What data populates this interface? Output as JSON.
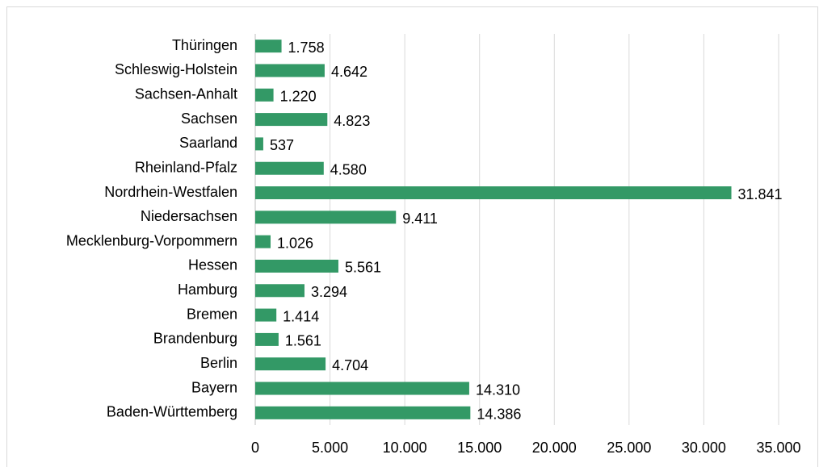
{
  "chart_data": {
    "type": "barh",
    "categories": [
      "Thüringen",
      "Schleswig-Holstein",
      "Sachsen-Anhalt",
      "Sachsen",
      "Saarland",
      "Rheinland-Pfalz",
      "Nordrhein-Westfalen",
      "Niedersachsen",
      "Mecklenburg-Vorpommern",
      "Hessen",
      "Hamburg",
      "Bremen",
      "Brandenburg",
      "Berlin",
      "Bayern",
      "Baden-Württemberg"
    ],
    "values": [
      1758,
      4642,
      1220,
      4823,
      537,
      4580,
      31841,
      9411,
      1026,
      5561,
      3294,
      1414,
      1561,
      4704,
      14310,
      14386
    ],
    "value_labels": [
      "1.758",
      "4.642",
      "1.220",
      "4.823",
      "537",
      "4.580",
      "31.841",
      "9.411",
      "1.026",
      "5.561",
      "3.294",
      "1.414",
      "1.561",
      "4.704",
      "14.310",
      "14.386"
    ],
    "color": "#339966",
    "xlim": [
      0,
      35000
    ],
    "xticks": [
      0,
      {
        "value": 5000,
        "label": "5.000"
      },
      {
        "value": 10000,
        "label": "10.000"
      },
      {
        "value": 15000,
        "label": "15.000"
      },
      {
        "value": 20000,
        "label": "20.000"
      },
      {
        "value": 25000,
        "label": "25.000"
      },
      {
        "value": 30000,
        "label": "30.000"
      },
      {
        "value": 35000,
        "label": "35.000"
      }
    ],
    "grid": true
  }
}
